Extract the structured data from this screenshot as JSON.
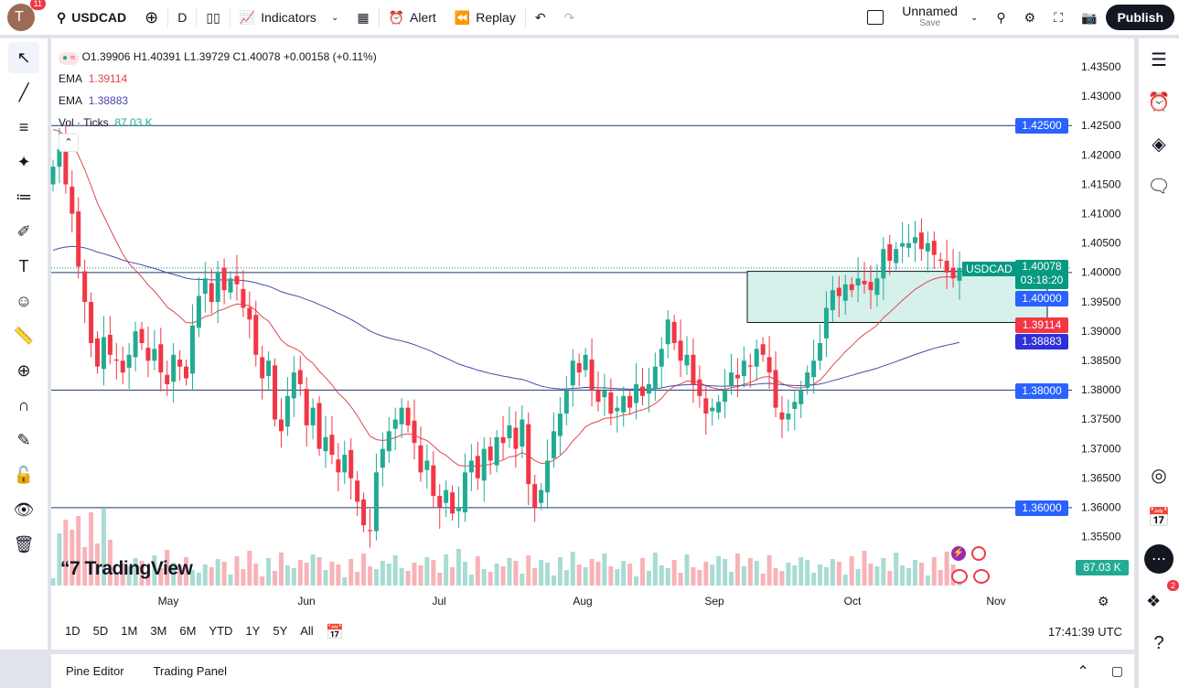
{
  "topbar": {
    "avatar_letter": "T",
    "notifications": "11",
    "symbol": "USDCAD",
    "interval": "D",
    "indicators": "Indicators",
    "alert": "Alert",
    "replay": "Replay",
    "layout_name": "Unnamed",
    "layout_save": "Save",
    "publish": "Publish"
  },
  "legend": {
    "ohlc": "O1.39906 H1.40391 L1.39729 C1.40078 +0.00158 (+0.11%)",
    "ema1_label": "EMA",
    "ema1_value": "1.39114",
    "ema2_label": "EMA",
    "ema2_value": "1.38883",
    "vol_label": "Vol · Ticks",
    "vol_value": "87.03 K"
  },
  "price_axis": [
    "1.43500",
    "1.43000",
    "1.42500",
    "1.42000",
    "1.41500",
    "1.41000",
    "1.40500",
    "1.40000",
    "1.39500",
    "1.39000",
    "1.38500",
    "1.38000",
    "1.37500",
    "1.37000",
    "1.36500",
    "1.36000",
    "1.35500"
  ],
  "badges": {
    "symbol": "USDCAD",
    "last_price": "1.40078",
    "countdown": "03:18:20",
    "level_1": "1.42500",
    "level_2": "1.40000",
    "level_3": "1.38000",
    "level_4": "1.36000",
    "ema1": "1.39114",
    "ema2": "1.38883",
    "volume": "87.03 K"
  },
  "time_axis": [
    "May",
    "Jun",
    "Jul",
    "Aug",
    "Sep",
    "Oct",
    "Nov"
  ],
  "ranges": [
    "1D",
    "5D",
    "1M",
    "3M",
    "6M",
    "YTD",
    "1Y",
    "5Y",
    "All"
  ],
  "clock": "17:41:39 UTC",
  "bottom": {
    "pine": "Pine Editor",
    "trading": "Trading Panel"
  },
  "logo": "TradingView",
  "right_notifications": "2",
  "colors": {
    "up": "#22ab94",
    "down": "#f23645",
    "ema1": "#e0474c",
    "ema2": "#4a48a8",
    "zone": "#d6f0ec"
  },
  "chart_data": {
    "type": "candlestick",
    "symbol": "USDCAD",
    "horizontal_levels": [
      1.425,
      1.4,
      1.38,
      1.36
    ],
    "zone": [
      1.3915,
      1.4002
    ],
    "ylim": [
      1.35,
      1.44
    ],
    "closes": [
      1.418,
      1.421,
      1.415,
      1.41,
      1.401,
      1.395,
      1.388,
      1.384,
      1.389,
      1.386,
      1.385,
      1.383,
      1.386,
      1.39,
      1.388,
      1.385,
      1.387,
      1.383,
      1.381,
      1.386,
      1.384,
      1.382,
      1.391,
      1.396,
      1.399,
      1.395,
      1.4,
      1.397,
      1.399,
      1.398,
      1.394,
      1.392,
      1.386,
      1.382,
      1.385,
      1.375,
      1.373,
      1.379,
      1.383,
      1.381,
      1.374,
      1.377,
      1.37,
      1.372,
      1.369,
      1.366,
      1.369,
      1.365,
      1.361,
      1.357,
      1.356,
      1.366,
      1.37,
      1.373,
      1.375,
      1.377,
      1.374,
      1.371,
      1.366,
      1.368,
      1.362,
      1.36,
      1.363,
      1.359,
      1.36,
      1.366,
      1.368,
      1.365,
      1.37,
      1.368,
      1.372,
      1.371,
      1.374,
      1.37,
      1.375,
      1.364,
      1.36,
      1.363,
      1.368,
      1.373,
      1.376,
      1.38,
      1.385,
      1.383,
      1.386,
      1.38,
      1.378,
      1.38,
      1.376,
      1.377,
      1.379,
      1.377,
      1.381,
      1.379,
      1.381,
      1.384,
      1.387,
      1.392,
      1.388,
      1.385,
      1.386,
      1.381,
      1.379,
      1.376,
      1.377,
      1.378,
      1.38,
      1.383,
      1.382,
      1.385,
      1.384,
      1.387,
      1.386,
      1.383,
      1.377,
      1.375,
      1.376,
      1.378,
      1.38,
      1.383,
      1.385,
      1.388,
      1.394,
      1.397,
      1.396,
      1.398,
      1.397,
      1.399,
      1.398,
      1.397,
      1.399,
      1.404,
      1.402,
      1.404,
      1.405,
      1.405,
      1.406,
      1.404,
      1.405,
      1.403,
      1.402,
      1.4,
      1.399,
      1.40078
    ]
  }
}
